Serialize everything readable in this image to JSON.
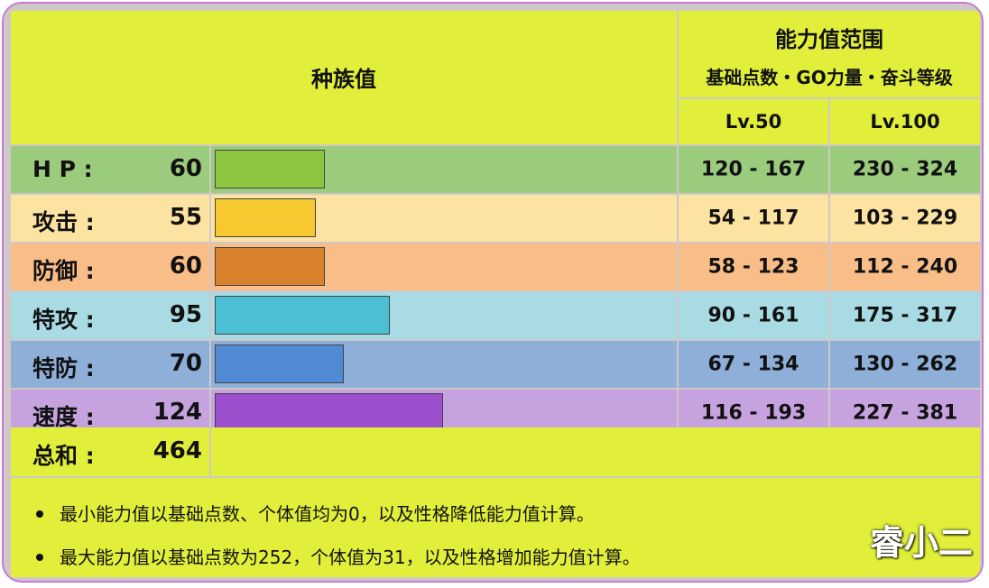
{
  "header": {
    "base_stats_title": "种族值",
    "stat_range_title": "能力值范围",
    "stat_range_subtitle": "基础点数・GO力量・奋斗等级",
    "lv50": "Lv.50",
    "lv100": "Lv.100"
  },
  "stats": [
    {
      "label": "H P :",
      "value": "60",
      "bar_fraction": 0.242,
      "bar_color": "#8cc63f",
      "row_color": "#9bcb7c",
      "lv50": "120 - 167",
      "lv100": "230 - 324"
    },
    {
      "label": "攻击 :",
      "value": "55",
      "bar_fraction": 0.222,
      "bar_color": "#f7c82f",
      "row_color": "#fde3a1",
      "lv50": "54 - 117",
      "lv100": "103 - 229"
    },
    {
      "label": "防御 :",
      "value": "60",
      "bar_fraction": 0.242,
      "bar_color": "#d9822d",
      "row_color": "#f9bd88",
      "lv50": "58 - 123",
      "lv100": "112 - 240"
    },
    {
      "label": "特攻 :",
      "value": "95",
      "bar_fraction": 0.383,
      "bar_color": "#4bbfd4",
      "row_color": "#a8dbe4",
      "lv50": "90 - 161",
      "lv100": "175 - 317"
    },
    {
      "label": "特防 :",
      "value": "70",
      "bar_fraction": 0.282,
      "bar_color": "#4f8ad2",
      "row_color": "#8eafd8",
      "lv50": "67 - 134",
      "lv100": "130 - 262"
    },
    {
      "label": "速度 :",
      "value": "124",
      "bar_fraction": 0.5,
      "bar_color": "#9b4fcc",
      "row_color": "#c6a3df",
      "lv50": "116 - 193",
      "lv100": "227 - 381"
    }
  ],
  "total": {
    "label": "总和 :",
    "value": "464"
  },
  "notes": [
    "最小能力值以基础点数、个体值均为0，以及性格降低能力值计算。",
    "最大能力值以基础点数为252，个体值为31，以及性格增加能力值计算。"
  ],
  "watermark": "睿小二"
}
